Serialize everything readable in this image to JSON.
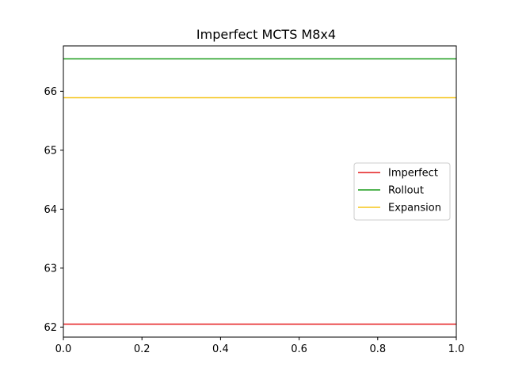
{
  "chart_data": {
    "type": "line",
    "title": "Imperfect MCTS M8x4",
    "xlabel": "",
    "ylabel": "",
    "xlim": [
      0.0,
      1.0
    ],
    "ylim": [
      61.83,
      66.77
    ],
    "x_ticks": [
      "0.0",
      "0.2",
      "0.4",
      "0.6",
      "0.8",
      "1.0"
    ],
    "y_ticks": [
      "62",
      "63",
      "64",
      "65",
      "66"
    ],
    "grid": false,
    "legend_position": "center-right",
    "series": [
      {
        "name": "Imperfect",
        "color": "#e41a1c",
        "x": [
          0.0,
          1.0
        ],
        "y": [
          62.05,
          62.05
        ]
      },
      {
        "name": "Rollout",
        "color": "#1a9b1a",
        "x": [
          0.0,
          1.0
        ],
        "y": [
          66.55,
          66.55
        ]
      },
      {
        "name": "Expansion",
        "color": "#f5c518",
        "x": [
          0.0,
          1.0
        ],
        "y": [
          65.89,
          65.89
        ]
      }
    ]
  }
}
